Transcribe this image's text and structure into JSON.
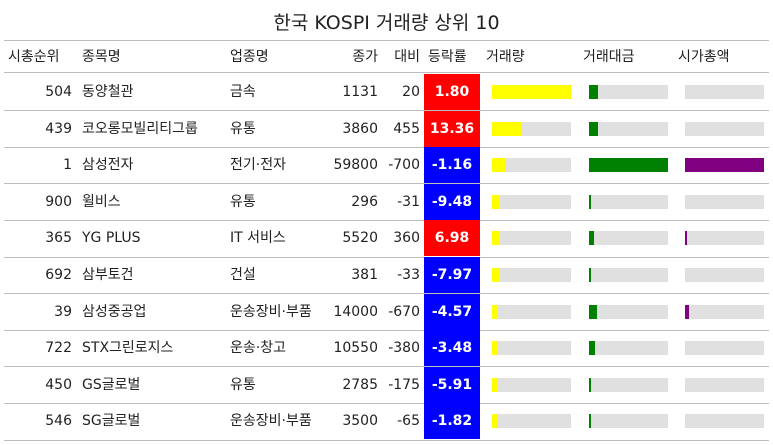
{
  "title": "한국 KOSPI 거래량 상위 10",
  "headers": {
    "rank": "시총순위",
    "name": "종목명",
    "sector": "업종명",
    "price": "종가",
    "change": "대비",
    "rate": "등락률",
    "volume": "거래량",
    "amount": "거래대금",
    "mcap": "시가총액"
  },
  "colors": {
    "up": "#ff0000",
    "down": "#0000ff",
    "volume": "#ffff00",
    "amount": "#008000",
    "mcap": "#800080",
    "track": "#e0e0e0"
  },
  "chart_data": {
    "type": "table",
    "title": "한국 KOSPI 거래량 상위 10",
    "rows": [
      {
        "rank": "504",
        "name": "동양철관",
        "sector": "금속",
        "price": "1131",
        "change": "20",
        "rate": "1.80",
        "rate_value": 1.8,
        "volume_share": 1.0,
        "amount_share": 0.12,
        "mcap_share": 0.0
      },
      {
        "rank": "439",
        "name": "코오롱모빌리티그룹",
        "sector": "유통",
        "price": "3860",
        "change": "455",
        "rate": "13.36",
        "rate_value": 13.36,
        "volume_share": 0.37,
        "amount_share": 0.12,
        "mcap_share": 0.0
      },
      {
        "rank": "1",
        "name": "삼성전자",
        "sector": "전기·전자",
        "price": "59800",
        "change": "-700",
        "rate": "-1.16",
        "rate_value": -1.16,
        "volume_share": 0.17,
        "amount_share": 1.0,
        "mcap_share": 1.0
      },
      {
        "rank": "900",
        "name": "윌비스",
        "sector": "유통",
        "price": "296",
        "change": "-31",
        "rate": "-9.48",
        "rate_value": -9.48,
        "volume_share": 0.1,
        "amount_share": 0.02,
        "mcap_share": 0.0
      },
      {
        "rank": "365",
        "name": "YG PLUS",
        "sector": "IT 서비스",
        "price": "5520",
        "change": "360",
        "rate": "6.98",
        "rate_value": 6.98,
        "volume_share": 0.1,
        "amount_share": 0.06,
        "mcap_share": 0.02
      },
      {
        "rank": "692",
        "name": "삼부토건",
        "sector": "건설",
        "price": "381",
        "change": "-33",
        "rate": "-7.97",
        "rate_value": -7.97,
        "volume_share": 0.1,
        "amount_share": 0.02,
        "mcap_share": 0.0
      },
      {
        "rank": "39",
        "name": "삼성중공업",
        "sector": "운송장비·부품",
        "price": "14000",
        "change": "-670",
        "rate": "-4.57",
        "rate_value": -4.57,
        "volume_share": 0.08,
        "amount_share": 0.1,
        "mcap_share": 0.05
      },
      {
        "rank": "722",
        "name": "STX그린로지스",
        "sector": "운송·창고",
        "price": "10550",
        "change": "-380",
        "rate": "-3.48",
        "rate_value": -3.48,
        "volume_share": 0.08,
        "amount_share": 0.08,
        "mcap_share": 0.0
      },
      {
        "rank": "450",
        "name": "GS글로벌",
        "sector": "유통",
        "price": "2785",
        "change": "-175",
        "rate": "-5.91",
        "rate_value": -5.91,
        "volume_share": 0.07,
        "amount_share": 0.03,
        "mcap_share": 0.0
      },
      {
        "rank": "546",
        "name": "SG글로벌",
        "sector": "운송장비·부품",
        "price": "3500",
        "change": "-65",
        "rate": "-1.82",
        "rate_value": -1.82,
        "volume_share": 0.06,
        "amount_share": 0.03,
        "mcap_share": 0.0
      }
    ]
  }
}
